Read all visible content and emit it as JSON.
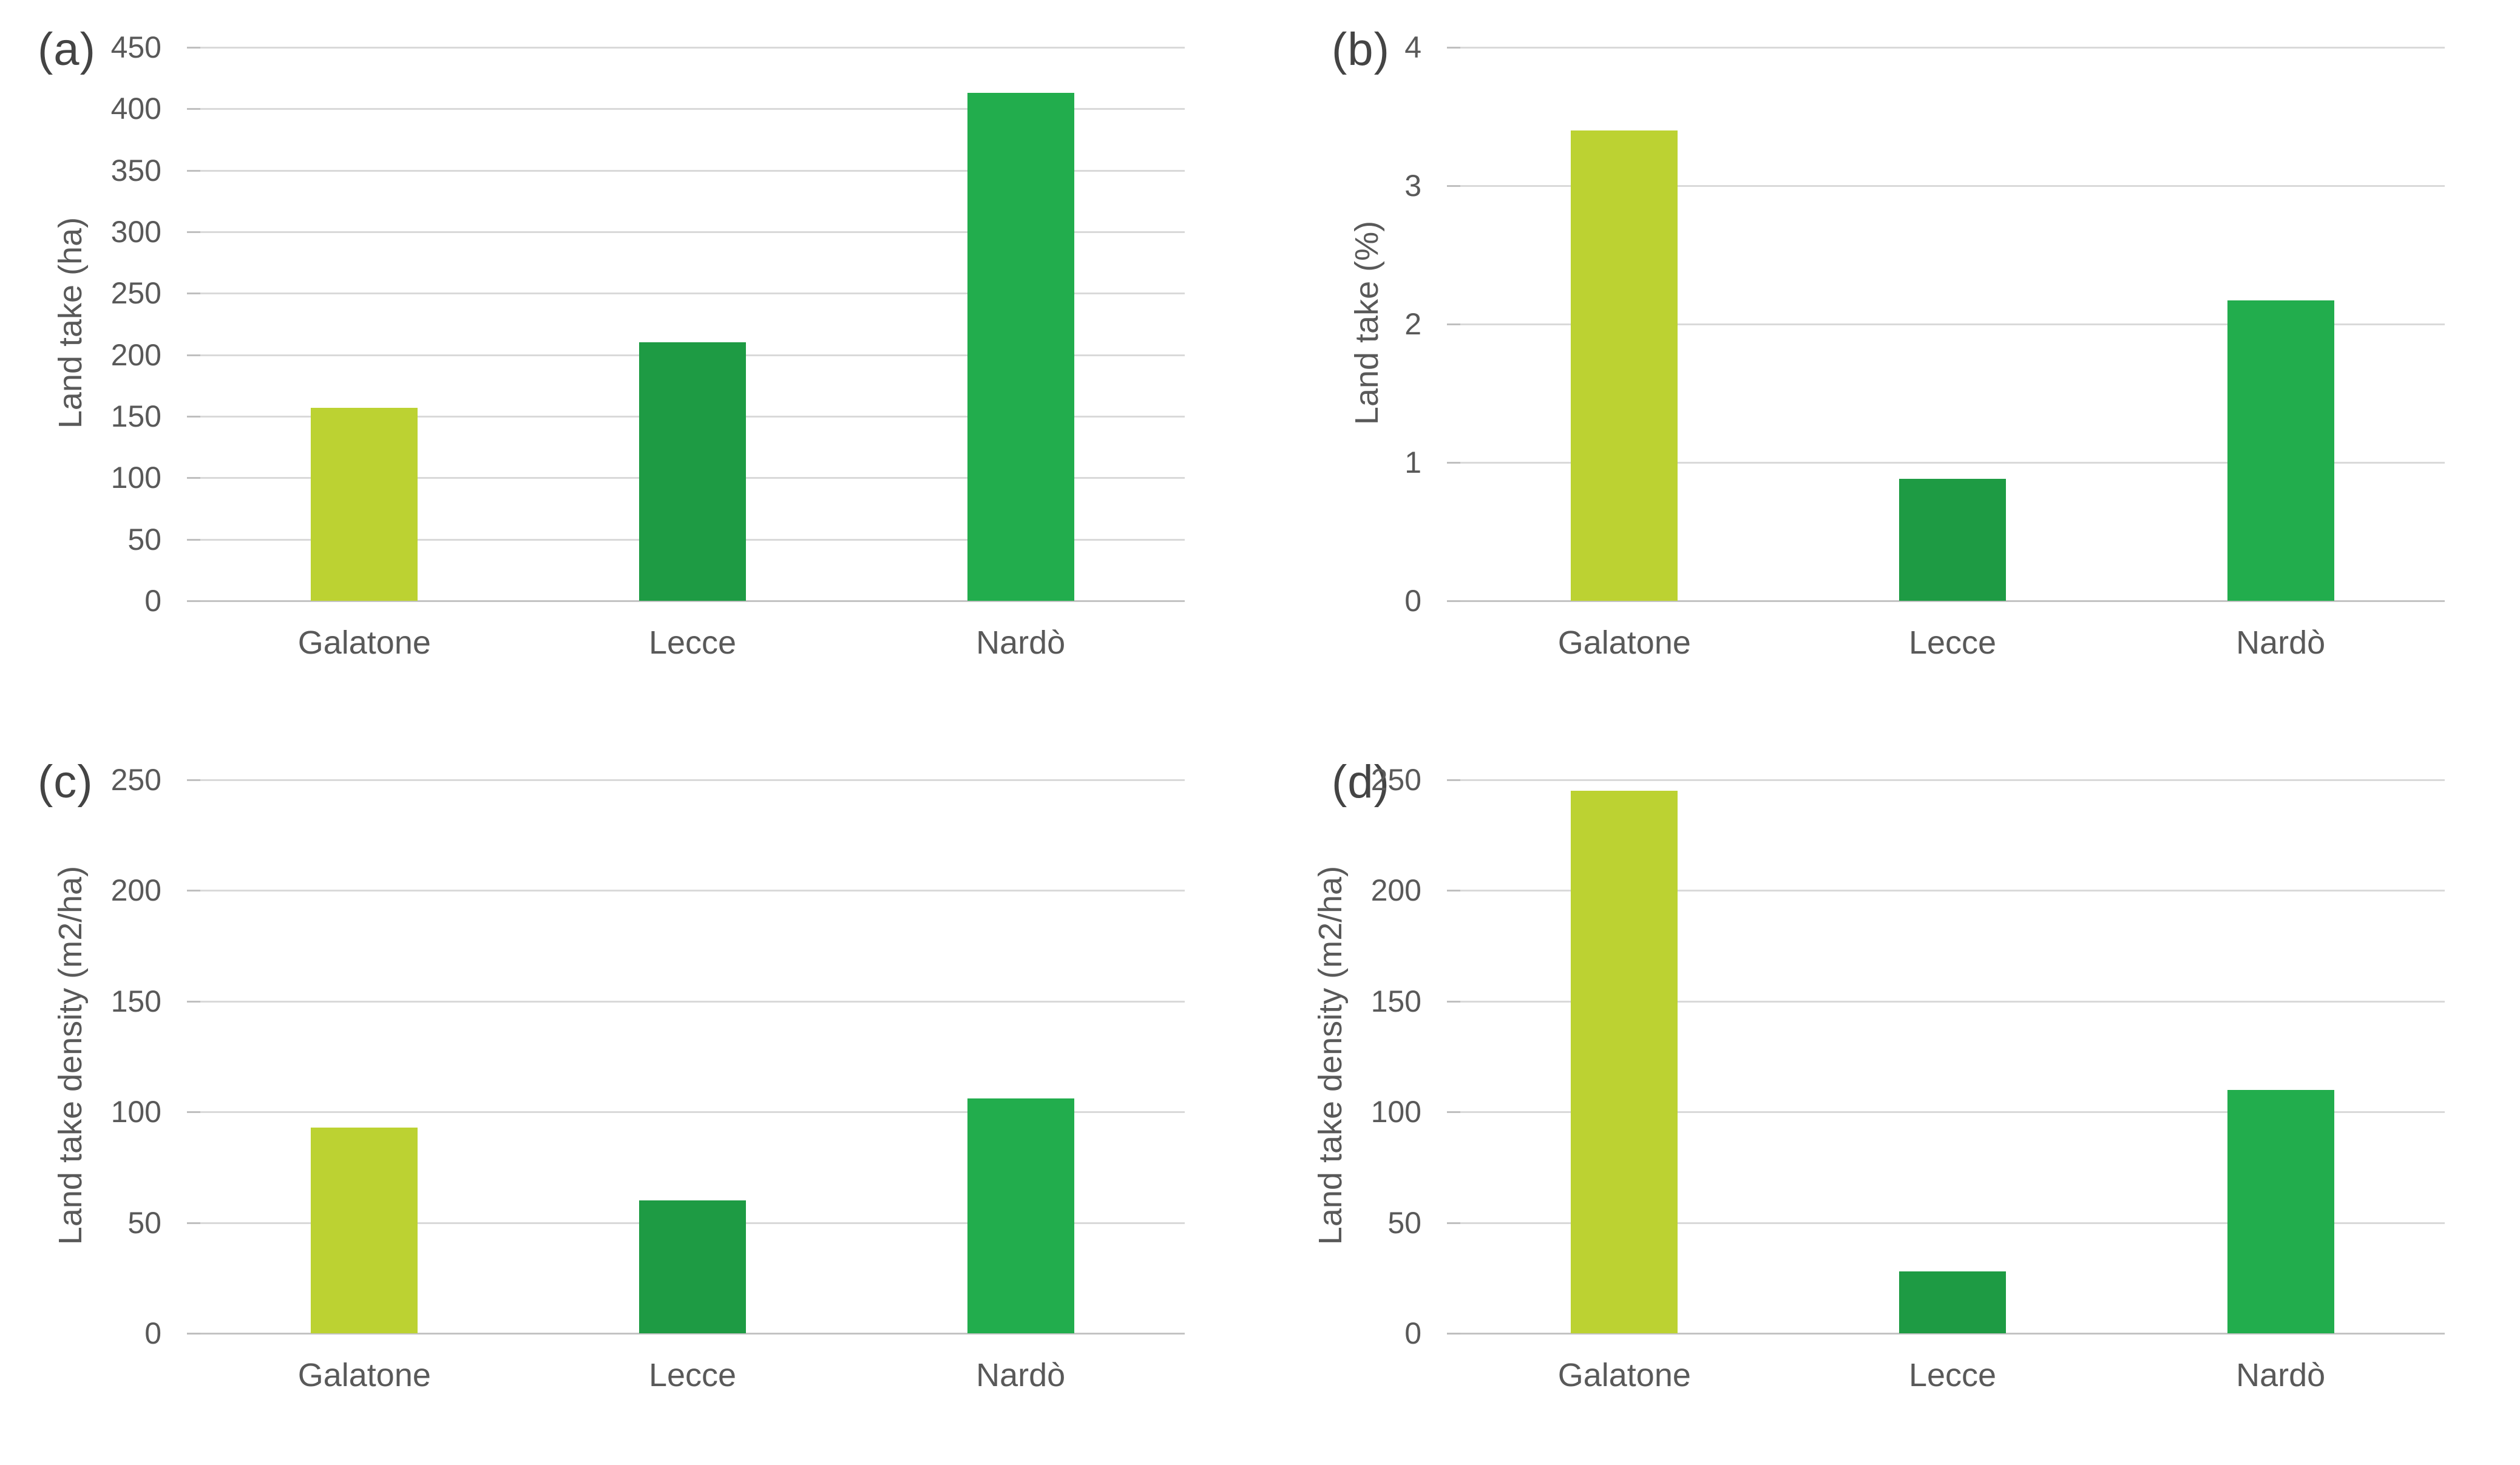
{
  "figure": {
    "background": "#ffffff",
    "text_color": "#595959",
    "panel_label_color": "#444444",
    "gridline_color": "#d9d9d9",
    "axis_line_color": "#c3c3c3",
    "bar_colors": {
      "galatone": "#bcd232",
      "lecce": "#1e9b44",
      "nardo": "#22ad4d"
    }
  },
  "chart_data": [
    {
      "type": "bar",
      "panel": "(a)",
      "title": "",
      "xlabel": "",
      "ylabel": "Land take (ha)",
      "categories": [
        "Galatone",
        "Lecce",
        "Nardò"
      ],
      "values": [
        157,
        210,
        413
      ],
      "colors": [
        "#bcd232",
        "#1e9b44",
        "#22ad4d"
      ],
      "ylim": [
        0,
        450
      ],
      "yticks": [
        0,
        50,
        100,
        150,
        200,
        250,
        300,
        350,
        400,
        450
      ],
      "grid": true,
      "legend": "none"
    },
    {
      "type": "bar",
      "panel": "(b)",
      "title": "",
      "xlabel": "",
      "ylabel": "Land take (%)",
      "categories": [
        "Galatone",
        "Lecce",
        "Nardò"
      ],
      "values": [
        3.4,
        0.88,
        2.17
      ],
      "colors": [
        "#bcd232",
        "#1e9b44",
        "#22ad4d"
      ],
      "ylim": [
        0,
        4
      ],
      "yticks": [
        0,
        1,
        2,
        3,
        4
      ],
      "grid": true,
      "legend": "none"
    },
    {
      "type": "bar",
      "panel": "(c)",
      "title": "",
      "xlabel": "",
      "ylabel": "Land take density (m2/ha)",
      "categories": [
        "Galatone",
        "Lecce",
        "Nardò"
      ],
      "values": [
        93,
        60,
        106
      ],
      "colors": [
        "#bcd232",
        "#1e9b44",
        "#22ad4d"
      ],
      "ylim": [
        0,
        250
      ],
      "yticks": [
        0,
        50,
        100,
        150,
        200,
        250
      ],
      "grid": true,
      "legend": "none"
    },
    {
      "type": "bar",
      "panel": "(d)",
      "title": "",
      "xlabel": "",
      "ylabel": "Land take density (m2/ha)",
      "categories": [
        "Galatone",
        "Lecce",
        "Nardò"
      ],
      "values": [
        245,
        28,
        110
      ],
      "colors": [
        "#bcd232",
        "#1e9b44",
        "#22ad4d"
      ],
      "ylim": [
        0,
        250
      ],
      "yticks": [
        0,
        50,
        100,
        150,
        200,
        250
      ],
      "grid": true,
      "legend": "none"
    }
  ]
}
